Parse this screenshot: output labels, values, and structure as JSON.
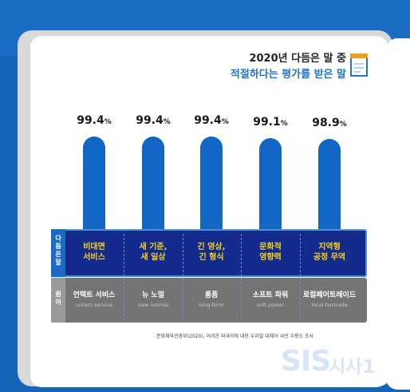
{
  "header": {
    "title_line1": "2020년 다듬은 말 중",
    "title_line2": "적절하다는 평가를 받은 말"
  },
  "row_labels": {
    "refined": "다듬은 말",
    "original": "원어"
  },
  "chart_data": {
    "type": "bar",
    "categories": [
      "비대면 서비스",
      "새 기준, 새 일상",
      "긴 영상, 긴 형식",
      "문화적 영향력",
      "지역형 공정 무역"
    ],
    "values": [
      99.4,
      99.4,
      99.4,
      99.1,
      98.9
    ],
    "value_labels": [
      "99.4",
      "99.4",
      "99.4",
      "99.1",
      "98.9"
    ],
    "value_unit": "%",
    "refined_words": [
      [
        "비대면",
        "서비스"
      ],
      [
        "새 기준,",
        "새 일상"
      ],
      [
        "긴 영상,",
        "긴 형식"
      ],
      [
        "문화적",
        "영향력"
      ],
      [
        "지역형",
        "공정 무역"
      ]
    ],
    "original_words": [
      "언택트 서비스",
      "뉴 노멀",
      "롱폼",
      "소프트 파워",
      "로컬페어트레이드"
    ],
    "english_words": [
      "untact service",
      "new normal",
      "long-form",
      "soft power",
      "local fairtrade"
    ],
    "title": "2020년 다듬은 말 중 적절하다는 평가를 받은 말"
  },
  "footer": {
    "source": "문화체육관광부(2020), 어려운 외국어에 대한 우리말 대체어 국민 수용도 조사",
    "logo_sis": "SIS",
    "logo_sisa": "시사1",
    "url": "www.sisaone.kr"
  },
  "colors": {
    "bar": "#1266c4",
    "refined_text": "#f5d21c",
    "refined_bg": "#142a8c",
    "original_bg": "#747474"
  }
}
